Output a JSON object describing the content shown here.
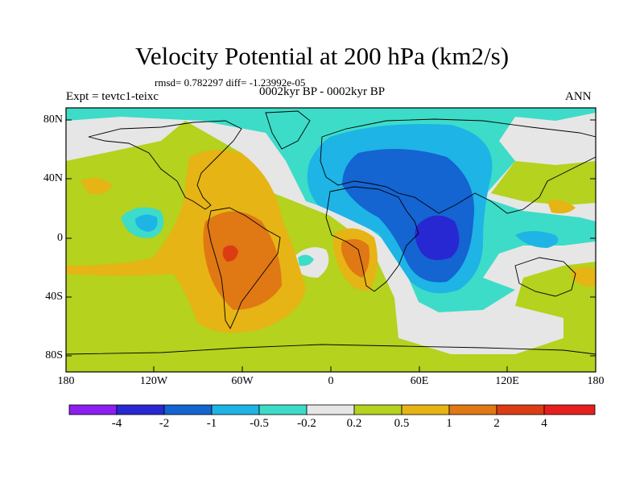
{
  "header": {
    "title": "Velocity Potential at 200 hPa (km2/s)",
    "stats": "rmsd= 0.782297 diff= -1.23992e-05",
    "experiment": "Expt = tevtc1-teixc",
    "period": "0002kyr BP - 0002kyr BP",
    "season": "ANN"
  },
  "axes": {
    "lat_labels": [
      "80N",
      "40N",
      "0",
      "40S",
      "80S"
    ],
    "lon_labels": [
      "180",
      "120W",
      "60W",
      "0",
      "60E",
      "120E",
      "180"
    ]
  },
  "colorbar": {
    "labels": [
      "-4",
      "-2",
      "-1",
      "-0.5",
      "-0.2",
      "0.2",
      "0.5",
      "1",
      "2",
      "4"
    ],
    "colors": [
      "#8c1ef0",
      "#2828d2",
      "#1464d2",
      "#1eb4e6",
      "#3cdcc8",
      "#e6e6e6",
      "#b4d21e",
      "#e6b414",
      "#e07814",
      "#dc3c14",
      "#e61e1e"
    ]
  },
  "chart_data": {
    "type": "contour-map",
    "title": "Velocity Potential at 200 hPa (km2/s)",
    "variable": "velocity potential",
    "level": "200 hPa",
    "units": "km2/s",
    "lon_range": [
      -180,
      180
    ],
    "lat_range": [
      -90,
      90
    ],
    "contour_levels": [
      -4,
      -2,
      -1,
      -0.5,
      -0.2,
      0.2,
      0.5,
      1,
      2,
      4
    ],
    "features": [
      {
        "region": "Indian Ocean / Africa east",
        "sign": "negative",
        "min_band": "-2 to -4"
      },
      {
        "region": "Eurasia / North Atlantic",
        "sign": "negative",
        "band": "-0.5 to -1"
      },
      {
        "region": "South America / Atlantic",
        "sign": "positive",
        "max_band": "2 to 4"
      },
      {
        "region": "Southern Africa / Gulf of Guinea",
        "sign": "positive",
        "band": "1 to 2"
      },
      {
        "region": "Southern Ocean",
        "sign": "positive",
        "band": "0.2 to 0.5"
      }
    ]
  }
}
